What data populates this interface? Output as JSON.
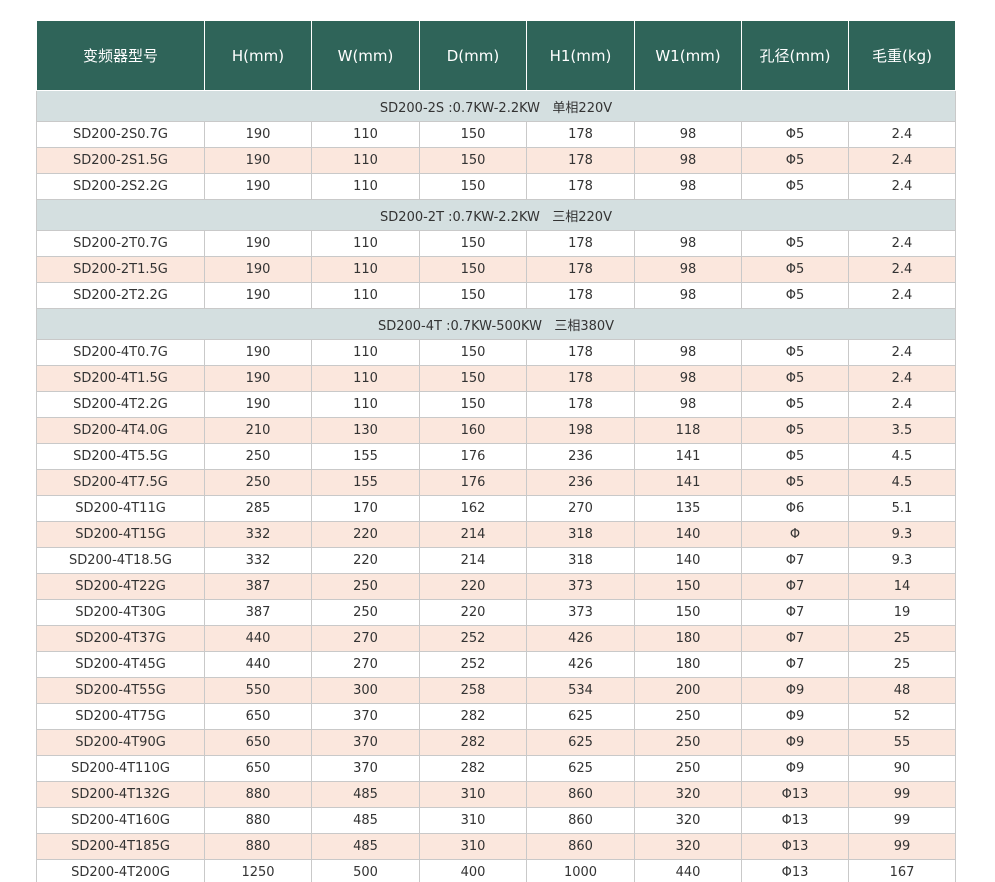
{
  "header": [
    "变频器型号",
    "H(mm)",
    "W(mm)",
    "D(mm)",
    "H1(mm)",
    "W1(mm)",
    "孔径(mm)",
    "毛重(kg)"
  ],
  "sections": [
    {
      "title": "SD200-2S :0.7KW-2.2KW   单相220V",
      "rows": [
        [
          "SD200-2S0.7G",
          "190",
          "110",
          "150",
          "178",
          "98",
          "Φ5",
          "2.4"
        ],
        [
          "SD200-2S1.5G",
          "190",
          "110",
          "150",
          "178",
          "98",
          "Φ5",
          "2.4"
        ],
        [
          "SD200-2S2.2G",
          "190",
          "110",
          "150",
          "178",
          "98",
          "Φ5",
          "2.4"
        ]
      ]
    },
    {
      "title": "SD200-2T :0.7KW-2.2KW   三相220V",
      "rows": [
        [
          "SD200-2T0.7G",
          "190",
          "110",
          "150",
          "178",
          "98",
          "Φ5",
          "2.4"
        ],
        [
          "SD200-2T1.5G",
          "190",
          "110",
          "150",
          "178",
          "98",
          "Φ5",
          "2.4"
        ],
        [
          "SD200-2T2.2G",
          "190",
          "110",
          "150",
          "178",
          "98",
          "Φ5",
          "2.4"
        ]
      ]
    },
    {
      "title": "SD200-4T :0.7KW-500KW   三相380V",
      "rows": [
        [
          "SD200-4T0.7G",
          "190",
          "110",
          "150",
          "178",
          "98",
          "Φ5",
          "2.4"
        ],
        [
          "SD200-4T1.5G",
          "190",
          "110",
          "150",
          "178",
          "98",
          "Φ5",
          "2.4"
        ],
        [
          "SD200-4T2.2G",
          "190",
          "110",
          "150",
          "178",
          "98",
          "Φ5",
          "2.4"
        ],
        [
          "SD200-4T4.0G",
          "210",
          "130",
          "160",
          "198",
          "118",
          "Φ5",
          "3.5"
        ],
        [
          "SD200-4T5.5G",
          "250",
          "155",
          "176",
          "236",
          "141",
          "Φ5",
          "4.5"
        ],
        [
          "SD200-4T7.5G",
          "250",
          "155",
          "176",
          "236",
          "141",
          "Φ5",
          "4.5"
        ],
        [
          "SD200-4T11G",
          "285",
          "170",
          "162",
          "270",
          "135",
          "Φ6",
          "5.1"
        ],
        [
          "SD200-4T15G",
          "332",
          "220",
          "214",
          "318",
          "140",
          "Φ",
          "9.3"
        ],
        [
          "SD200-4T18.5G",
          "332",
          "220",
          "214",
          "318",
          "140",
          "Φ7",
          "9.3"
        ],
        [
          "SD200-4T22G",
          "387",
          "250",
          "220",
          "373",
          "150",
          "Φ7",
          "14"
        ],
        [
          "SD200-4T30G",
          "387",
          "250",
          "220",
          "373",
          "150",
          "Φ7",
          "19"
        ],
        [
          "SD200-4T37G",
          "440",
          "270",
          "252",
          "426",
          "180",
          "Φ7",
          "25"
        ],
        [
          "SD200-4T45G",
          "440",
          "270",
          "252",
          "426",
          "180",
          "Φ7",
          "25"
        ],
        [
          "SD200-4T55G",
          "550",
          "300",
          "258",
          "534",
          "200",
          "Φ9",
          "48"
        ],
        [
          "SD200-4T75G",
          "650",
          "370",
          "282",
          "625",
          "250",
          "Φ9",
          "52"
        ],
        [
          "SD200-4T90G",
          "650",
          "370",
          "282",
          "625",
          "250",
          "Φ9",
          "55"
        ],
        [
          "SD200-4T110G",
          "650",
          "370",
          "282",
          "625",
          "250",
          "Φ9",
          "90"
        ],
        [
          "SD200-4T132G",
          "880",
          "485",
          "310",
          "860",
          "320",
          "Φ13",
          "99"
        ],
        [
          "SD200-4T160G",
          "880",
          "485",
          "310",
          "860",
          "320",
          "Φ13",
          "99"
        ],
        [
          "SD200-4T185G",
          "880",
          "485",
          "310",
          "860",
          "320",
          "Φ13",
          "99"
        ],
        [
          "SD200-4T200G",
          "1250",
          "500",
          "400",
          "1000",
          "440",
          "Φ13",
          "167"
        ]
      ]
    }
  ]
}
